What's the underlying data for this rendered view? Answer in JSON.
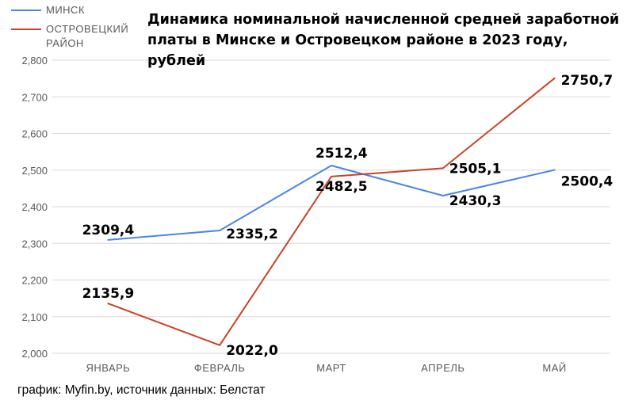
{
  "chart_data": {
    "type": "line",
    "title": "Динамика номинальной начисленной средней заработной платы в Минске и Островецком районе в 2023 году, рублей",
    "categories": [
      "ЯНВАРЬ",
      "ФЕВРАЛЬ",
      "МАРТ",
      "АПРЕЛЬ",
      "МАЙ"
    ],
    "ylim": [
      2000,
      2800
    ],
    "yticks": [
      2000,
      2100,
      2200,
      2300,
      2400,
      2500,
      2600,
      2700,
      2800
    ],
    "ytick_labels": [
      "2,000",
      "2,100",
      "2,200",
      "2,300",
      "2,400",
      "2,500",
      "2,600",
      "2,700",
      "2,800"
    ],
    "grid": true,
    "legend_position": "top-left",
    "series": [
      {
        "name": "МИНСК",
        "color": "#4a86e8",
        "values": [
          2309.4,
          2335.2,
          2512.4,
          2430.3,
          2500.4
        ],
        "labels": [
          "2309,4",
          "2335,2",
          "2512,4",
          "2430,3",
          "2500,4"
        ]
      },
      {
        "name": "ОСТРОВЕЦКИЙ РАЙОН",
        "color": "#cc4125",
        "values": [
          2135.9,
          2022.0,
          2482.5,
          2505.1,
          2750.7
        ],
        "labels": [
          "2135,9",
          "2022,0",
          "2482,5",
          "2505,1",
          "2750,7"
        ]
      }
    ]
  },
  "legend": {
    "items": [
      {
        "label": "МИНСК",
        "color": "#4a86e8"
      },
      {
        "label": "ОСТРОВЕЦКИЙ РАЙОН",
        "color": "#cc4125"
      }
    ]
  },
  "source_text": "график: Myfin.by, источник данных: Белстат"
}
